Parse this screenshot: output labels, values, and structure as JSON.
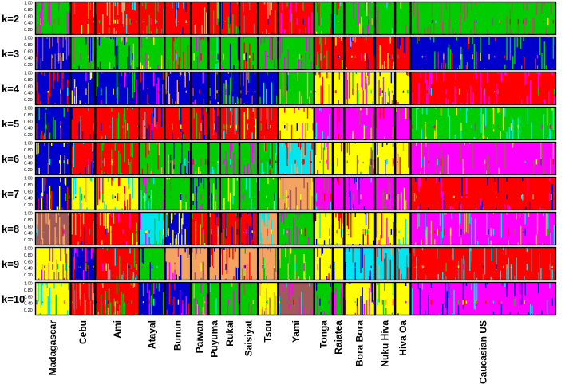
{
  "chart_data": {
    "type": "stacked-bar",
    "title": "",
    "ylim": [
      0,
      1
    ],
    "y_ticks": [
      "1.00",
      "0.80",
      "0.60",
      "0.40",
      "0.20"
    ],
    "k_labels": [
      "k=2",
      "k=3",
      "k=4",
      "k=5",
      "k=6",
      "k=7",
      "k=8",
      "k=9",
      "k=10"
    ],
    "palette": {
      "green": "#00cc00",
      "red": "#ff0000",
      "blue": "#0000cc",
      "yellow": "#ffff00",
      "magenta": "#ff00ff",
      "cyan": "#00e5ee",
      "orange": "#f4a460",
      "brown": "#a05a5a"
    },
    "populations": [
      {
        "name": "Madagascar",
        "weight": 4.6
      },
      {
        "name": "Cebu",
        "weight": 3.2
      },
      {
        "name": "Ami",
        "weight": 5.7
      },
      {
        "name": "Atayal",
        "weight": 3.3
      },
      {
        "name": "Bunun",
        "weight": 3.4
      },
      {
        "name": "Paiwan",
        "weight": 2.3
      },
      {
        "name": "Puyuma",
        "weight": 1.5
      },
      {
        "name": "Rukai",
        "weight": 2.5
      },
      {
        "name": "Saisiyat",
        "weight": 2.4
      },
      {
        "name": "Tsou",
        "weight": 2.6
      },
      {
        "name": "Yami",
        "weight": 4.7
      },
      {
        "name": "Tonga",
        "weight": 2.4
      },
      {
        "name": "Raiatea",
        "weight": 1.5
      },
      {
        "name": "Bora Bora",
        "weight": 4.0
      },
      {
        "name": "Nuku Hiva",
        "weight": 2.6
      },
      {
        "name": "Hiva Oa",
        "weight": 2.0
      },
      {
        "name": "Caucasian US",
        "weight": 18.9
      }
    ],
    "dominant_clusters": [
      {
        "k": "k=2",
        "clusters": [
          "green",
          "red",
          "red",
          "red",
          "red",
          "red",
          "red",
          "red",
          "red",
          "red",
          "red",
          "green",
          "green",
          "green",
          "green",
          "green",
          "green"
        ]
      },
      {
        "k": "k=3",
        "clusters": [
          "blue",
          "green",
          "green",
          "green",
          "green",
          "green",
          "green",
          "green",
          "green",
          "green",
          "green",
          "red",
          "red",
          "red",
          "red",
          "red",
          "blue"
        ]
      },
      {
        "k": "k=4",
        "clusters": [
          "blue",
          "blue",
          "blue",
          "blue",
          "blue",
          "blue",
          "blue",
          "blue",
          "blue",
          "blue",
          "green",
          "yellow",
          "yellow",
          "yellow",
          "yellow",
          "yellow",
          "red"
        ]
      },
      {
        "k": "k=5",
        "clusters": [
          "blue",
          "red",
          "red",
          "red",
          "red",
          "red",
          "red",
          "red",
          "red",
          "red",
          "yellow",
          "magenta",
          "magenta",
          "magenta",
          "magenta",
          "magenta",
          "green"
        ]
      },
      {
        "k": "k=6",
        "clusters": [
          "blue",
          "red",
          "red",
          "green",
          "green",
          "green",
          "green",
          "green",
          "green",
          "green",
          "cyan",
          "yellow",
          "yellow",
          "yellow",
          "yellow",
          "yellow",
          "magenta"
        ]
      },
      {
        "k": "k=7",
        "clusters": [
          "blue",
          "yellow",
          "yellow",
          "green",
          "green",
          "green",
          "green",
          "green",
          "green",
          "green",
          "orange",
          "magenta",
          "magenta",
          "magenta",
          "magenta",
          "magenta",
          "red"
        ]
      },
      {
        "k": "k=8",
        "clusters": [
          "brown",
          "red",
          "red",
          "cyan",
          "blue",
          "red",
          "red",
          "red",
          "red",
          "orange",
          "green",
          "yellow",
          "yellow",
          "yellow",
          "yellow",
          "yellow",
          "magenta"
        ]
      },
      {
        "k": "k=9",
        "clusters": [
          "yellow",
          "blue",
          "red",
          "green",
          "orange",
          "orange",
          "orange",
          "orange",
          "orange",
          "orange",
          "green",
          "yellow",
          "yellow",
          "cyan",
          "cyan",
          "cyan",
          "red"
        ]
      },
      {
        "k": "k=10",
        "clusters": [
          "yellow",
          "red",
          "red",
          "blue",
          "blue",
          "green",
          "green",
          "green",
          "green",
          "yellow",
          "brown",
          "green",
          "green",
          "yellow",
          "yellow",
          "yellow",
          "magenta"
        ]
      }
    ]
  }
}
